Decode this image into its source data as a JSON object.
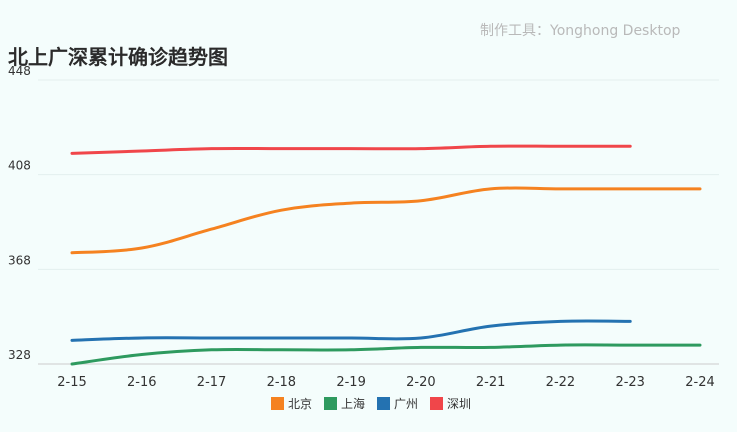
{
  "watermark": "制作工具：Yonghong Desktop",
  "colors": {
    "background": "#f4fdfc",
    "grid": "#e3efee",
    "axis": "#cccccc"
  },
  "chart_data": {
    "type": "line",
    "title": "北上广深累计确诊趋势图",
    "categories": [
      "2-15",
      "2-16",
      "2-17",
      "2-18",
      "2-19",
      "2-20",
      "2-21",
      "2-22",
      "2-23",
      "2-24"
    ],
    "ylim": [
      328,
      448
    ],
    "yticks": [
      328,
      368,
      408,
      448
    ],
    "grid": true,
    "legend_position": "bottom",
    "series": [
      {
        "name": "北京",
        "color": "#f58220",
        "values": [
          375,
          377,
          385,
          393,
          396,
          397,
          402,
          402,
          402,
          402
        ]
      },
      {
        "name": "上海",
        "color": "#2e9a5f",
        "values": [
          328,
          332,
          334,
          334,
          334,
          335,
          335,
          336,
          336,
          336
        ]
      },
      {
        "name": "广州",
        "color": "#2472b1",
        "values": [
          338,
          339,
          339,
          339,
          339,
          339,
          344,
          346,
          346,
          null
        ]
      },
      {
        "name": "深圳",
        "color": "#f0464a",
        "values": [
          417,
          418,
          419,
          419,
          419,
          419,
          420,
          420,
          420,
          null
        ]
      }
    ]
  }
}
